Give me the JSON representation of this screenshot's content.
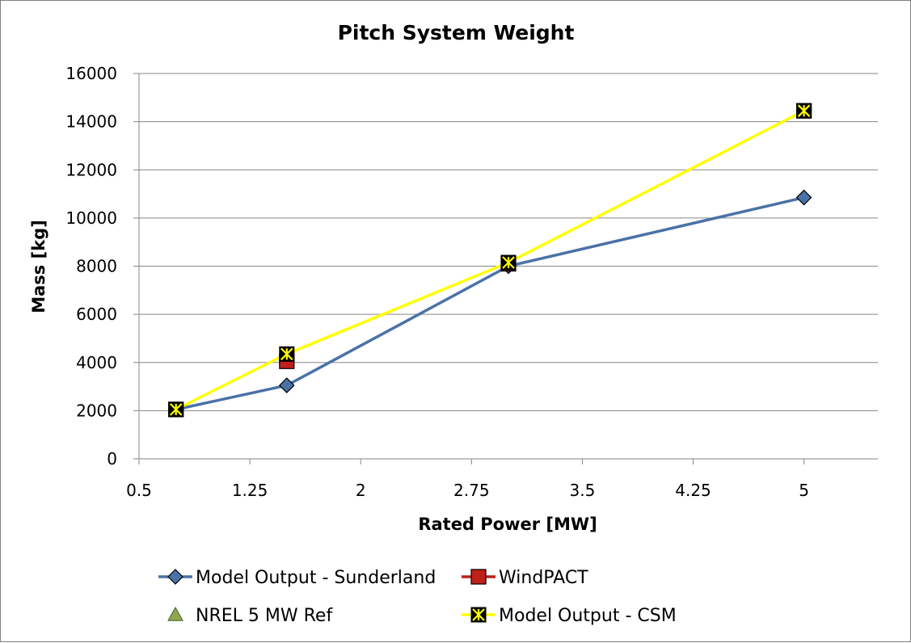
{
  "chart_data": {
    "type": "scatter",
    "title": "Pitch System Weight",
    "xlabel": "Rated Power [MW]",
    "ylabel": "Mass [kg]",
    "xlim": [
      0.5,
      5.5
    ],
    "ylim": [
      0,
      16000
    ],
    "x_ticks": [
      "0.5",
      "1.25",
      "2",
      "2.75",
      "3.5",
      "4.25",
      "5"
    ],
    "y_ticks": [
      "0",
      "2000",
      "4000",
      "6000",
      "8000",
      "10000",
      "12000",
      "14000",
      "16000"
    ],
    "grid": "horizontal",
    "legend_position": "bottom",
    "series": [
      {
        "name": "Model Output - Sunderland",
        "color": "#4a72a6",
        "marker": "diamond",
        "line": true,
        "points": [
          [
            0.75,
            2050
          ],
          [
            1.5,
            3050
          ],
          [
            3.0,
            8000
          ],
          [
            5.0,
            10850
          ]
        ]
      },
      {
        "name": "WindPACT",
        "color": "#c0201a",
        "marker": "square",
        "line": false,
        "points": [
          [
            0.75,
            2050
          ],
          [
            1.5,
            4050
          ],
          [
            3.0,
            8100
          ],
          [
            5.0,
            14450
          ]
        ]
      },
      {
        "name": "NREL 5 MW Ref",
        "color": "#8fa850",
        "marker": "triangle",
        "line": false,
        "points": [
          [
            5.0,
            14450
          ]
        ]
      },
      {
        "name": "Model Output - CSM",
        "color": "#ffff00",
        "marker": "x-box",
        "line": true,
        "points": [
          [
            0.75,
            2050
          ],
          [
            1.5,
            4350
          ],
          [
            3.0,
            8150
          ],
          [
            5.0,
            14450
          ]
        ]
      }
    ]
  }
}
